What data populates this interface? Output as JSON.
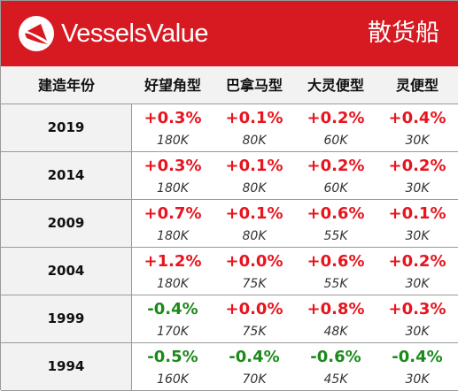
{
  "header": {
    "brand": "VesselsValue",
    "section_title": "散货船",
    "logo_icon": "vesselsvalue-logo-icon",
    "background": "#d71921"
  },
  "columns": [
    "建造年份",
    "好望角型",
    "巴拿马型",
    "大灵便型",
    "灵便型"
  ],
  "colors": {
    "positive": "#e8141e",
    "negative": "#1b8a1b"
  },
  "rows": [
    {
      "year": "2019",
      "cells": [
        {
          "change": "+0.3%",
          "size": "180K"
        },
        {
          "change": "+0.1%",
          "size": "80K"
        },
        {
          "change": "+0.2%",
          "size": "60K"
        },
        {
          "change": "+0.4%",
          "size": "30K"
        }
      ]
    },
    {
      "year": "2014",
      "cells": [
        {
          "change": "+0.3%",
          "size": "180K"
        },
        {
          "change": "+0.1%",
          "size": "80K"
        },
        {
          "change": "+0.2%",
          "size": "60K"
        },
        {
          "change": "+0.2%",
          "size": "30K"
        }
      ]
    },
    {
      "year": "2009",
      "cells": [
        {
          "change": "+0.7%",
          "size": "180K"
        },
        {
          "change": "+0.1%",
          "size": "80K"
        },
        {
          "change": "+0.6%",
          "size": "55K"
        },
        {
          "change": "+0.1%",
          "size": "30K"
        }
      ]
    },
    {
      "year": "2004",
      "cells": [
        {
          "change": "+1.2%",
          "size": "180K"
        },
        {
          "change": "+0.0%",
          "size": "75K"
        },
        {
          "change": "+0.6%",
          "size": "55K"
        },
        {
          "change": "+0.2%",
          "size": "30K"
        }
      ]
    },
    {
      "year": "1999",
      "cells": [
        {
          "change": "-0.4%",
          "size": "170K"
        },
        {
          "change": "+0.0%",
          "size": "75K"
        },
        {
          "change": "+0.8%",
          "size": "48K"
        },
        {
          "change": "+0.3%",
          "size": "30K"
        }
      ]
    },
    {
      "year": "1994",
      "cells": [
        {
          "change": "-0.5%",
          "size": "160K"
        },
        {
          "change": "-0.4%",
          "size": "70K"
        },
        {
          "change": "-0.6%",
          "size": "45K"
        },
        {
          "change": "-0.4%",
          "size": "30K"
        }
      ]
    }
  ]
}
